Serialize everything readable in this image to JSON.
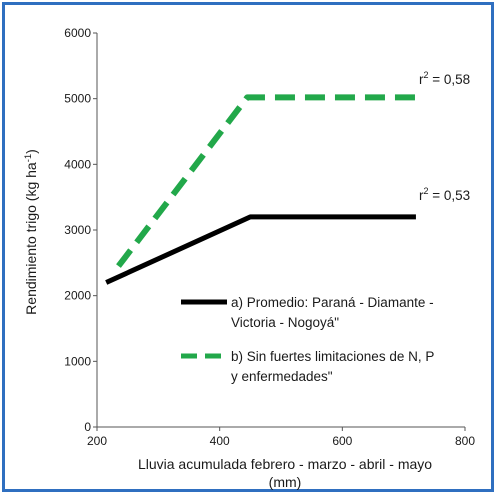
{
  "chart_data": {
    "type": "line",
    "title": "",
    "xlabel_lines": [
      "Lluvia acumulada  febrero - marzo - abril - mayo",
      "(mm)"
    ],
    "ylabel": "Rendimiento trigo (kg ha",
    "ylabel_sup": "-1",
    "ylabel_end": ")",
    "xlim": [
      200,
      800
    ],
    "ylim": [
      0,
      6000
    ],
    "xticks": [
      "200",
      "400",
      "600",
      "800"
    ],
    "yticks": [
      "0",
      "1000",
      "2000",
      "3000",
      "4000",
      "5000",
      "6000"
    ],
    "grid": false,
    "legend_position": "lower-right",
    "series": [
      {
        "name_lines": [
          "a) Promedio: Paraná - Diamante -",
          "Victoria - Nogoyá\""
        ],
        "color": "#000000",
        "dash": "solid",
        "x": [
          215,
          450,
          720
        ],
        "y": [
          2200,
          3200,
          3200
        ],
        "r2_label": "r",
        "r2_sup": "2",
        "r2_value": " = 0,53"
      },
      {
        "name_lines": [
          "b) Sin fuertes limitaciones de N, P",
          "y enfermedades\""
        ],
        "color": "#22a84a",
        "dash": "dashed",
        "x": [
          235,
          445,
          730
        ],
        "y": [
          2450,
          5020,
          5020
        ],
        "r2_label": "r",
        "r2_sup": "2",
        "r2_value": " = 0,58"
      }
    ]
  }
}
